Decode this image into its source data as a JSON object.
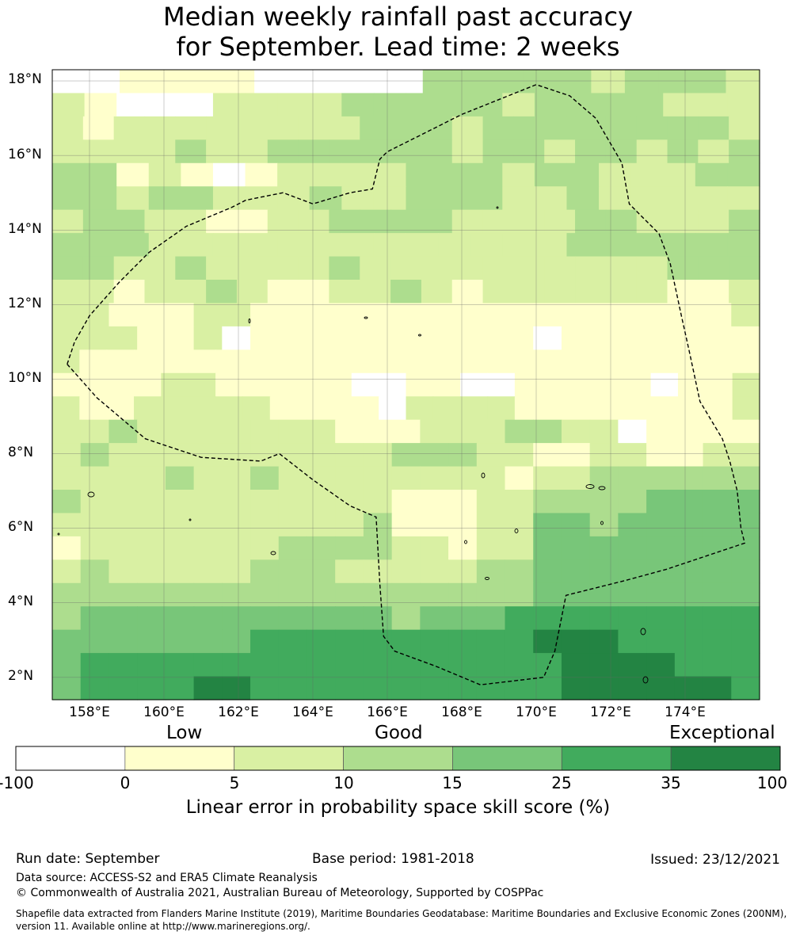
{
  "title": {
    "line1": "Median weekly rainfall past accuracy",
    "line2": "for September. Lead time: 2 weeks"
  },
  "map": {
    "lat_labels": [
      "18°N",
      "16°N",
      "14°N",
      "12°N",
      "10°N",
      "8°N",
      "6°N",
      "4°N",
      "2°N"
    ],
    "lon_labels": [
      "158°E",
      "160°E",
      "162°E",
      "164°E",
      "166°E",
      "168°E",
      "170°E",
      "172°E",
      "174°E"
    ],
    "lon_range": [
      157.0,
      176.0
    ],
    "lat_range": [
      1.4,
      18.3
    ],
    "grid": [
      "BB1111BBBBB3333323332",
      "21BBB22223333323333222",
      "21222222223332333333332",
      "22223223333332332332323",
      "33121B1222233323322233",
      "3323322232233322322222",
      "23322112233332222332223",
      "3332222222222222333333",
      "33223222232222222222333",
      "22122321122321222222112",
      "2211122111111111111111112",
      "2221120111111111101111111",
      "21111111111111111111111111",
      "11112211111001100111110112",
      "21122222111102222111111112",
      "2232222222111222332201111",
      "2322222222223332211221122",
      "2222322322222222122333333",
      "3222222222221112233334444",
      "2222222222231112244344444",
      "1222222233332212244444444",
      "2322222333222223344444444",
      "3333333333333333344444444",
      "3444444444443444555555555",
      "4444444555555555566655555",
      "4555555555555555556666555",
      "4555566555555555556666665"
    ],
    "colors": [
      "#ffffff",
      "#ffffcc",
      "#d9f0a3",
      "#addd8e",
      "#78c679",
      "#41ab5d",
      "#238443"
    ],
    "boundary": [
      [
        157.4,
        10.4
      ],
      [
        157.6,
        11.0
      ],
      [
        158.0,
        11.7
      ],
      [
        158.8,
        12.6
      ],
      [
        159.6,
        13.4
      ],
      [
        160.6,
        14.1
      ],
      [
        161.8,
        14.6
      ],
      [
        162.2,
        14.8
      ],
      [
        163.2,
        15.0
      ],
      [
        164.0,
        14.7
      ],
      [
        165.0,
        15.0
      ],
      [
        165.6,
        15.1
      ],
      [
        165.8,
        15.9
      ],
      [
        166.0,
        16.1
      ],
      [
        167.0,
        16.6
      ],
      [
        168.0,
        17.1
      ],
      [
        170.0,
        17.9
      ],
      [
        170.9,
        17.6
      ],
      [
        171.6,
        17.0
      ],
      [
        172.3,
        15.8
      ],
      [
        172.5,
        14.7
      ],
      [
        172.7,
        14.5
      ],
      [
        173.3,
        13.9
      ],
      [
        173.6,
        13.1
      ],
      [
        173.9,
        11.7
      ],
      [
        174.1,
        10.8
      ],
      [
        174.4,
        9.4
      ],
      [
        174.7,
        8.9
      ],
      [
        175.0,
        8.4
      ],
      [
        175.2,
        7.8
      ],
      [
        175.4,
        7.0
      ],
      [
        175.5,
        6.0
      ],
      [
        175.6,
        5.6
      ],
      [
        173.5,
        4.9
      ],
      [
        172.4,
        4.6
      ],
      [
        170.8,
        4.2
      ],
      [
        170.5,
        2.7
      ],
      [
        170.2,
        2.0
      ],
      [
        168.5,
        1.8
      ],
      [
        167.3,
        2.3
      ],
      [
        166.2,
        2.7
      ],
      [
        165.9,
        3.1
      ],
      [
        165.8,
        4.5
      ],
      [
        165.7,
        6.3
      ],
      [
        165.0,
        6.6
      ],
      [
        164.0,
        7.3
      ],
      [
        163.1,
        8.0
      ],
      [
        162.6,
        7.8
      ],
      [
        161.0,
        7.9
      ],
      [
        159.5,
        8.4
      ],
      [
        158.2,
        9.5
      ],
      [
        157.4,
        10.4
      ]
    ]
  },
  "colorbar": {
    "categories": {
      "low": "Low",
      "good": "Good",
      "exceptional": "Exceptional"
    },
    "ticks": [
      "-100",
      "0",
      "5",
      "10",
      "15",
      "25",
      "35",
      "100"
    ],
    "colors": [
      "#ffffff",
      "#ffffcc",
      "#d9f0a3",
      "#addd8e",
      "#78c679",
      "#41ab5d",
      "#238443"
    ],
    "label": "Linear error in probability space skill score (%)"
  },
  "footer": {
    "run_date": "Run date: September",
    "base_period": "Base period: 1981-2018",
    "issued": "Issued: 23/12/2021",
    "data_source": "Data source: ACCESS-S2 and ERA5 Climate Reanalysis",
    "copyright": "© Commonwealth of Australia 2021, Australian Bureau of Meteorology, Supported by COSPPac",
    "shapefile_line1": "Shapefile data extracted from Flanders Marine Institute (2019), Maritime Boundaries Geodatabase: Maritime Boundaries and Exclusive Economic Zones (200NM),",
    "shapefile_line2": "version 11. Available online at http://www.marineregions.org/."
  }
}
